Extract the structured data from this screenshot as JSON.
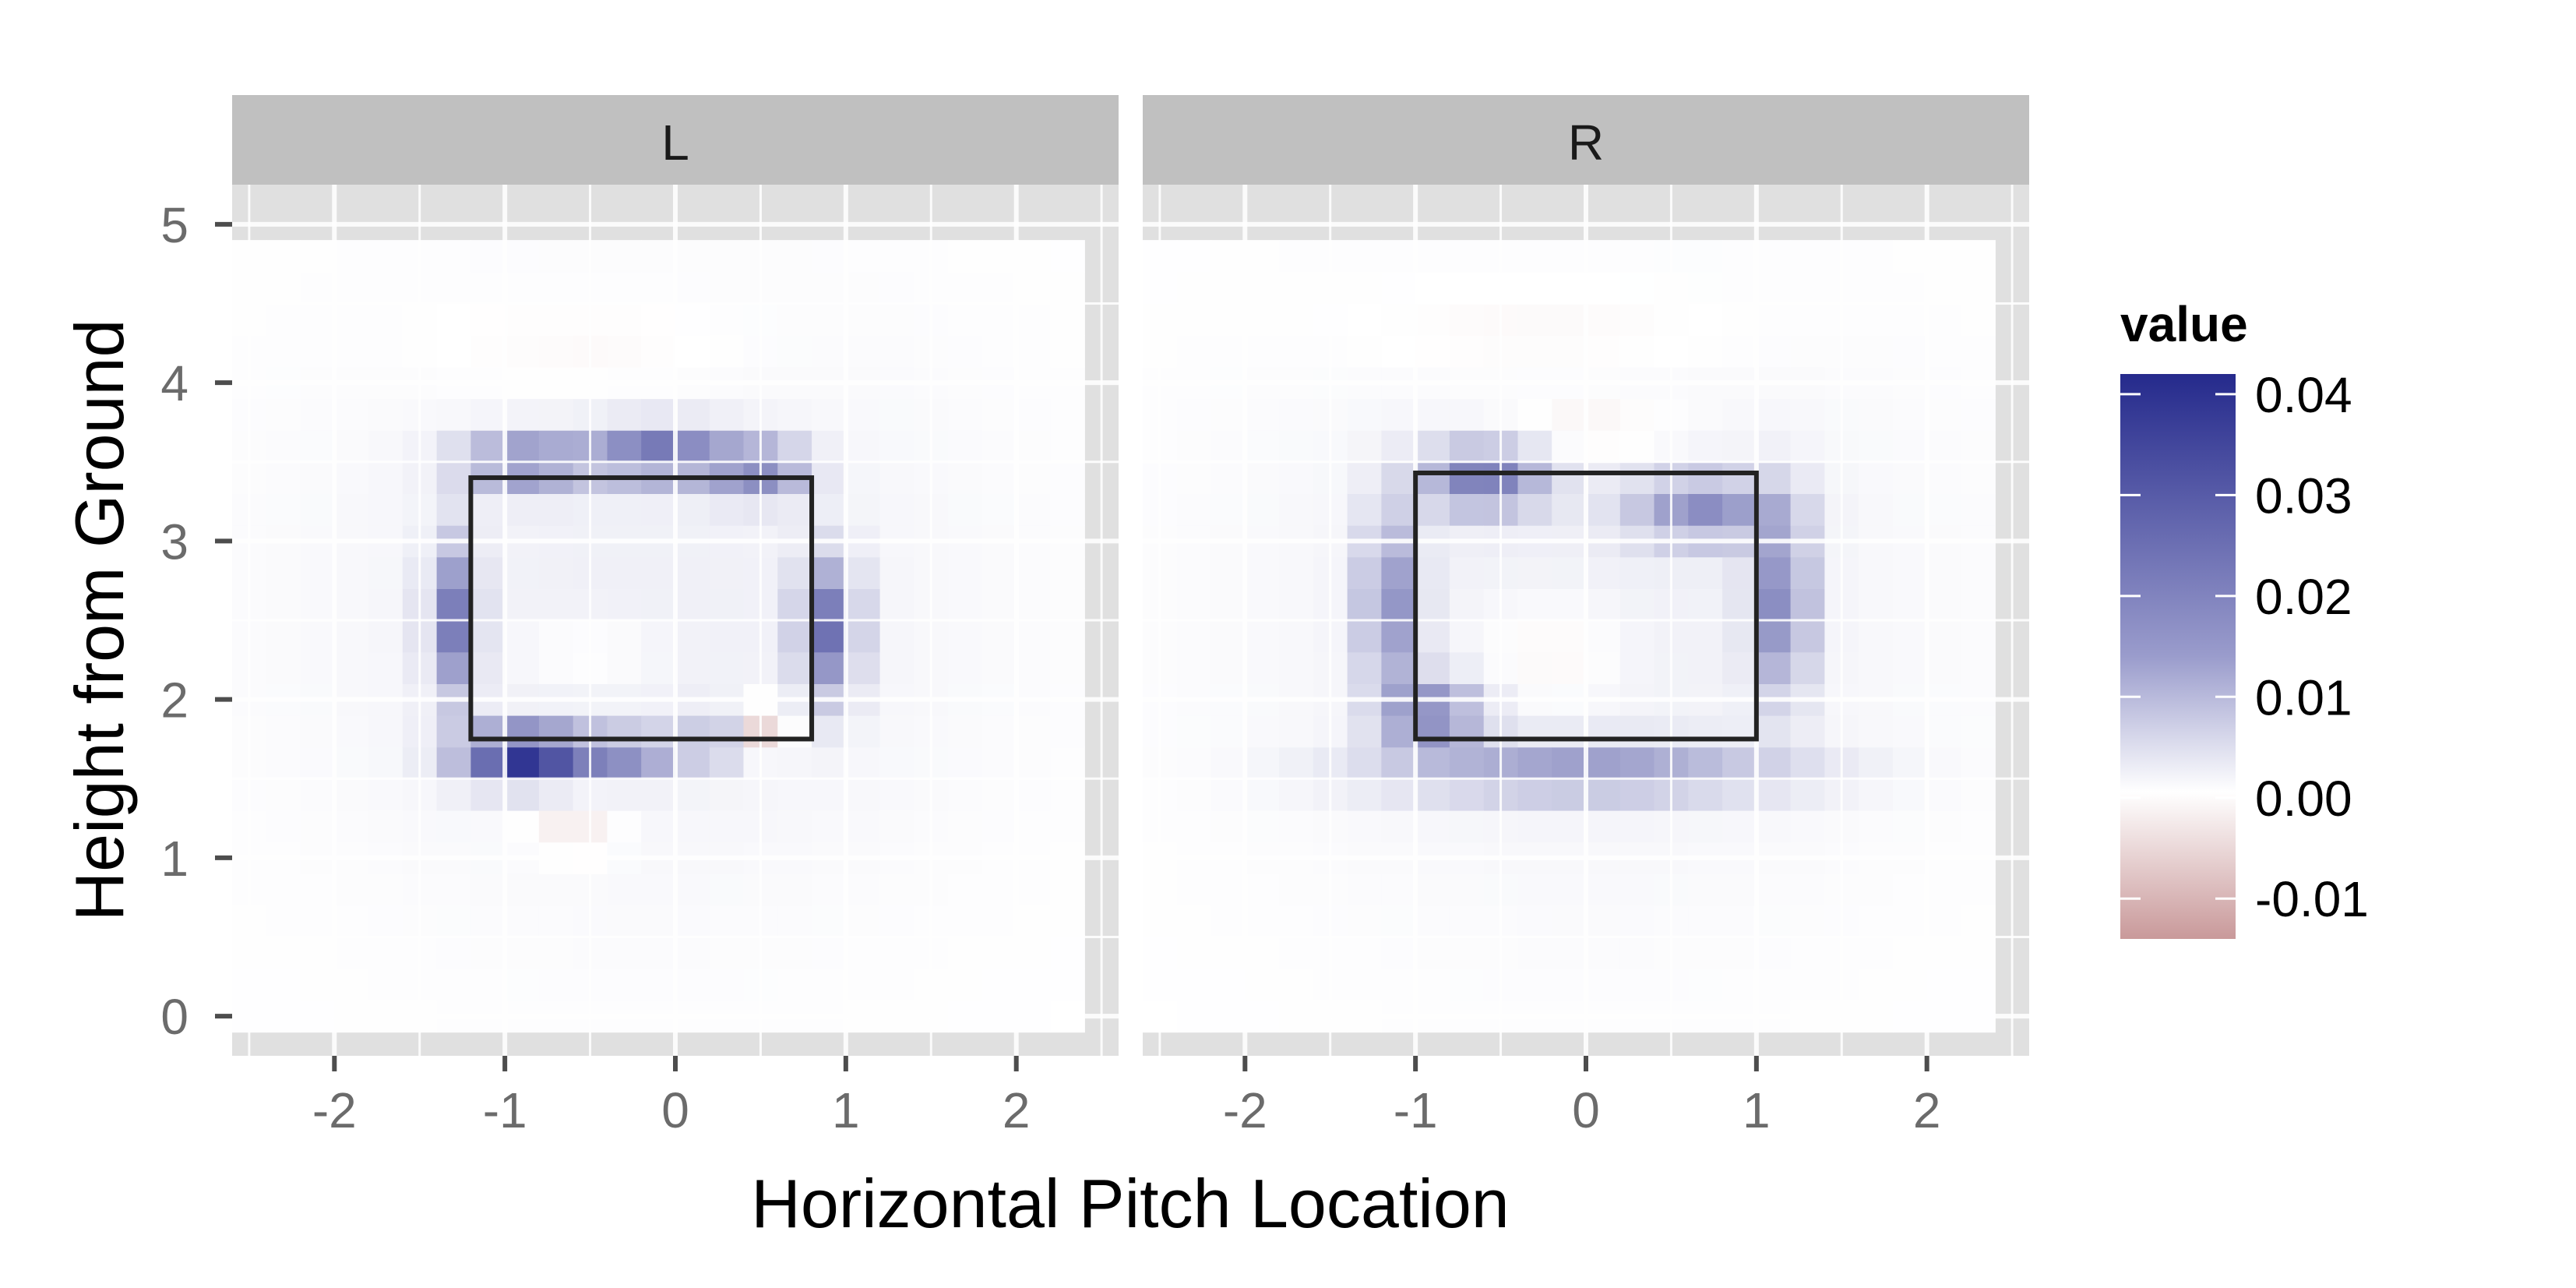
{
  "chart_data": {
    "type": "heatmap",
    "facets": [
      "L",
      "R"
    ],
    "xlabel": "Horizontal Pitch Location",
    "ylabel": "Height from Ground",
    "xlim": [
      -2.6,
      2.6
    ],
    "ylim": [
      -0.25,
      5.25
    ],
    "xticks": [
      -2,
      -1,
      0,
      1,
      2
    ],
    "yticks": [
      0,
      1,
      2,
      3,
      4,
      5
    ],
    "grid": true,
    "legend": {
      "title": "value",
      "position": "right",
      "ticks": [
        0.04,
        0.03,
        0.02,
        0.01,
        0.0,
        -0.01
      ],
      "tick_labels": [
        "0.04",
        "0.03",
        "0.02",
        "0.01",
        "0.00",
        "-0.01"
      ],
      "range": [
        -0.014,
        0.042
      ],
      "low_color": "#c9999a",
      "mid_color": "#ffffff",
      "high_color": "#252a8c"
    },
    "strike_zones": {
      "L": {
        "x": [
          -1.2,
          0.8
        ],
        "y": [
          1.75,
          3.4
        ]
      },
      "R": {
        "x": [
          -1.0,
          1.0
        ],
        "y": [
          1.75,
          3.43
        ]
      }
    },
    "grid_spec": {
      "x_start": -2.5,
      "x_step": 0.2,
      "nx": 25,
      "y_start": 0.0,
      "y_step": 0.2,
      "ny": 25
    },
    "series": [
      {
        "name": "L",
        "blobs": [
          {
            "x": -1.3,
            "y": 2.5,
            "dx": 0.1,
            "dy": 0.35,
            "v": 0.024
          },
          {
            "x": -0.9,
            "y": 3.5,
            "dx": 0.25,
            "dy": 0.12,
            "v": 0.022
          },
          {
            "x": -0.1,
            "y": 3.55,
            "dx": 0.3,
            "dy": 0.12,
            "v": 0.026
          },
          {
            "x": 0.5,
            "y": 3.45,
            "dx": 0.2,
            "dy": 0.12,
            "v": 0.02
          },
          {
            "x": 0.9,
            "y": 2.45,
            "dx": 0.12,
            "dy": 0.3,
            "v": 0.026
          },
          {
            "x": -0.9,
            "y": 1.65,
            "dx": 0.25,
            "dy": 0.12,
            "v": 0.04
          },
          {
            "x": -0.3,
            "y": 1.65,
            "dx": 0.25,
            "dy": 0.1,
            "v": 0.02
          },
          {
            "x": 0.3,
            "y": 1.75,
            "dx": 0.2,
            "dy": 0.12,
            "v": 0.01
          },
          {
            "x": 0.5,
            "y": 1.8,
            "dx": 0.12,
            "dy": 0.12,
            "v": -0.013
          },
          {
            "x": -0.6,
            "y": 1.2,
            "dx": 0.2,
            "dy": 0.15,
            "v": -0.004
          },
          {
            "x": -0.5,
            "y": 2.3,
            "dx": 0.3,
            "dy": 0.15,
            "v": -0.003
          },
          {
            "x": -0.5,
            "y": 4.2,
            "dx": 0.7,
            "dy": 0.25,
            "v": -0.002
          },
          {
            "x": -0.2,
            "y": 2.6,
            "dx": 1.4,
            "dy": 1.3,
            "v": 0.003
          }
        ]
      },
      {
        "name": "R",
        "blobs": [
          {
            "x": -1.15,
            "y": 2.6,
            "dx": 0.12,
            "dy": 0.4,
            "v": 0.02
          },
          {
            "x": -0.9,
            "y": 1.9,
            "dx": 0.2,
            "dy": 0.15,
            "v": 0.022
          },
          {
            "x": -0.6,
            "y": 3.4,
            "dx": 0.25,
            "dy": 0.15,
            "v": 0.024
          },
          {
            "x": 0.7,
            "y": 3.2,
            "dx": 0.3,
            "dy": 0.15,
            "v": 0.02
          },
          {
            "x": 1.15,
            "y": 2.6,
            "dx": 0.12,
            "dy": 0.4,
            "v": 0.022
          },
          {
            "x": 0.0,
            "y": 1.55,
            "dx": 0.8,
            "dy": 0.12,
            "v": 0.018
          },
          {
            "x": -0.2,
            "y": 2.3,
            "dx": 0.3,
            "dy": 0.25,
            "v": -0.004
          },
          {
            "x": 0.0,
            "y": 3.7,
            "dx": 0.4,
            "dy": 0.12,
            "v": -0.004
          },
          {
            "x": -0.2,
            "y": 4.3,
            "dx": 0.8,
            "dy": 0.25,
            "v": -0.002
          },
          {
            "x": 0.0,
            "y": 2.6,
            "dx": 1.4,
            "dy": 1.3,
            "v": 0.003
          }
        ]
      }
    ]
  }
}
